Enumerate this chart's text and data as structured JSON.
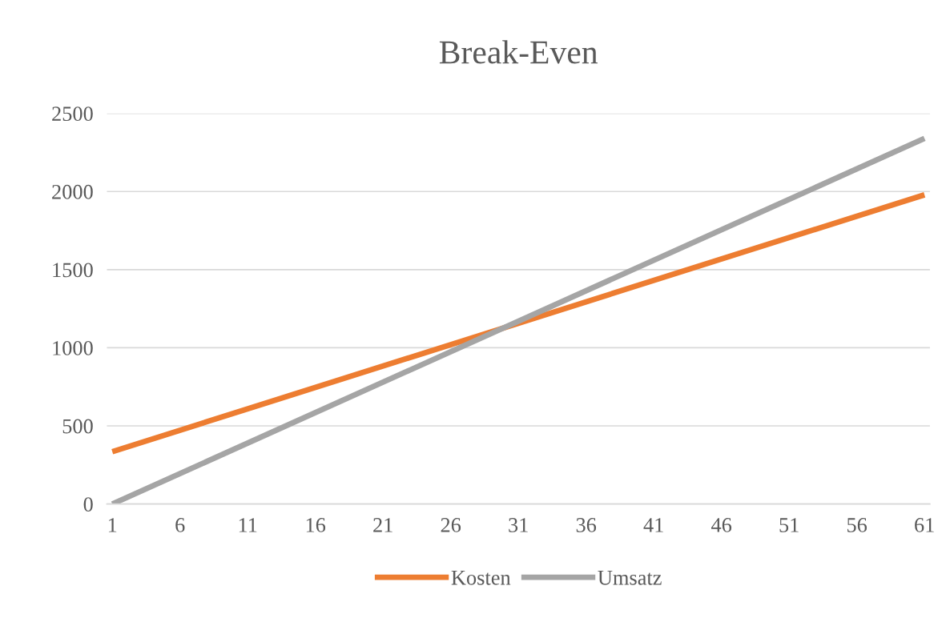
{
  "chart_data": {
    "type": "line",
    "title": "Break-Even",
    "x": [
      1,
      61
    ],
    "series": [
      {
        "name": "Kosten",
        "color": "#ed7d31",
        "values": [
          335,
          1979
        ]
      },
      {
        "name": "Umsatz",
        "color": "#a5a5a5",
        "values": [
          0,
          2340
        ]
      }
    ],
    "xlim": [
      0.6,
      61.4
    ],
    "xticks": [
      1,
      6,
      11,
      16,
      21,
      26,
      31,
      36,
      41,
      46,
      51,
      56,
      61
    ],
    "ylim": [
      0,
      2500
    ],
    "yticks": [
      0,
      500,
      1000,
      1500,
      2000,
      2500
    ],
    "grid": "y",
    "legend": "bottom",
    "marker": "none",
    "line_style": "solid"
  }
}
